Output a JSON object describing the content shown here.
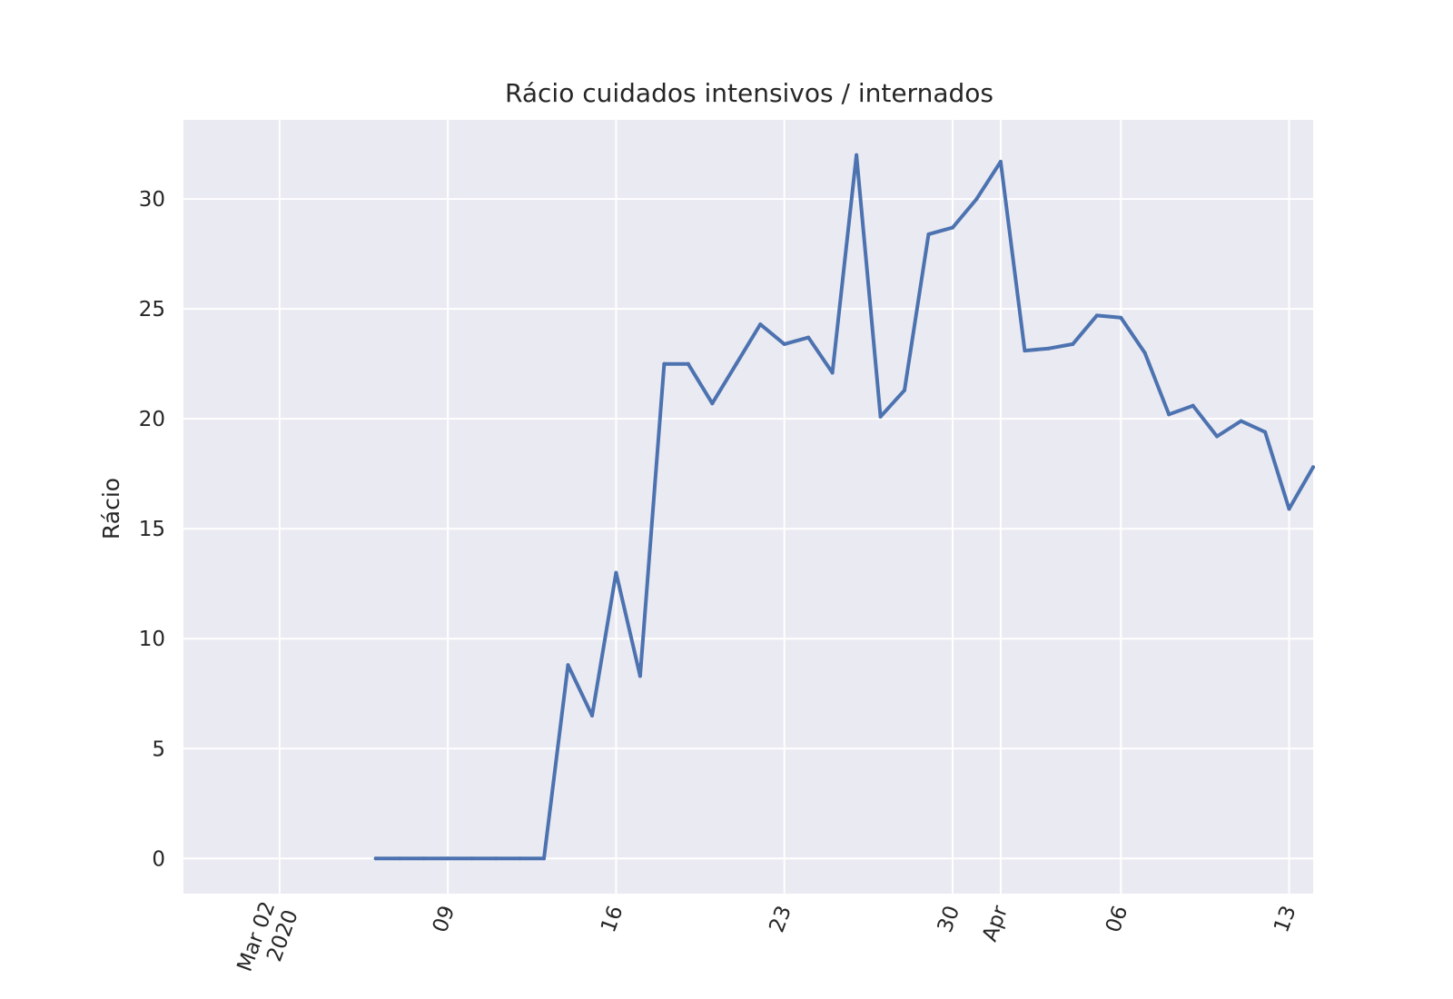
{
  "chart_data": {
    "type": "line",
    "title": "Rácio cuidados intensivos / internados",
    "xlabel": "",
    "ylabel": "Rácio",
    "x_axis_type": "date",
    "xlim": [
      "2020-02-27",
      "2020-04-14"
    ],
    "ylim": [
      -1.6,
      33.6
    ],
    "grid": true,
    "background_color": "#eaeaf2",
    "grid_color": "#ffffff",
    "line_color": "#4c72b0",
    "x_ticks": [
      {
        "date": "2020-03-02",
        "label": "Mar 02\n2020"
      },
      {
        "date": "2020-03-09",
        "label": "09"
      },
      {
        "date": "2020-03-16",
        "label": "16"
      },
      {
        "date": "2020-03-23",
        "label": "23"
      },
      {
        "date": "2020-03-30",
        "label": "30"
      },
      {
        "date": "2020-04-01",
        "label": "Apr"
      },
      {
        "date": "2020-04-06",
        "label": "06"
      },
      {
        "date": "2020-04-13",
        "label": "13"
      }
    ],
    "y_ticks": [
      0,
      5,
      10,
      15,
      20,
      25,
      30
    ],
    "series": [
      {
        "x": [
          "2020-03-06",
          "2020-03-07",
          "2020-03-08",
          "2020-03-09",
          "2020-03-10",
          "2020-03-11",
          "2020-03-12",
          "2020-03-13",
          "2020-03-14",
          "2020-03-15",
          "2020-03-16",
          "2020-03-17",
          "2020-03-18",
          "2020-03-19",
          "2020-03-20",
          "2020-03-21",
          "2020-03-22",
          "2020-03-23",
          "2020-03-24",
          "2020-03-25",
          "2020-03-26",
          "2020-03-27",
          "2020-03-28",
          "2020-03-29",
          "2020-03-30",
          "2020-03-31",
          "2020-04-01",
          "2020-04-02",
          "2020-04-03",
          "2020-04-04",
          "2020-04-05",
          "2020-04-06",
          "2020-04-07",
          "2020-04-08",
          "2020-04-09",
          "2020-04-10",
          "2020-04-11",
          "2020-04-12",
          "2020-04-13",
          "2020-04-14"
        ],
        "values": [
          0,
          0,
          0,
          0,
          0,
          0,
          0,
          0,
          8.8,
          6.5,
          13.0,
          8.3,
          22.5,
          22.5,
          20.7,
          22.5,
          24.3,
          23.4,
          23.7,
          22.1,
          32.0,
          20.1,
          21.3,
          28.4,
          28.7,
          30.0,
          31.7,
          23.1,
          23.2,
          23.4,
          24.7,
          24.6,
          23.0,
          20.2,
          20.6,
          19.2,
          19.9,
          19.4,
          15.9,
          17.8
        ]
      }
    ]
  }
}
